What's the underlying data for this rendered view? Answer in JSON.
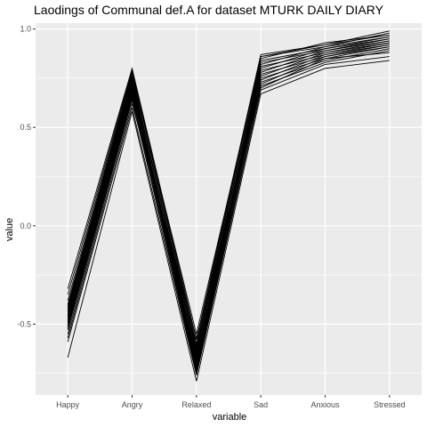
{
  "chart_data": {
    "type": "line",
    "title": "Laodings of Communal def.A for dataset MTURK DAILY DIARY",
    "xlabel": "variable",
    "ylabel": "value",
    "categories": [
      "Happy",
      "Angry",
      "Relaxed",
      "Sad",
      "Anxious",
      "Stressed"
    ],
    "ylim": [
      -0.86,
      1.03
    ],
    "yticks": [
      -0.5,
      0.0,
      0.5,
      1.0
    ],
    "ytick_labels": [
      "-0.5",
      "0.0",
      "0.5",
      "1.0"
    ],
    "grid": true,
    "legend": "none",
    "line_color": "#000000",
    "panel_background": "#ebebeb",
    "series": [
      {
        "values": [
          -0.32,
          0.8,
          -0.58,
          0.87,
          0.92,
          0.99
        ]
      },
      {
        "values": [
          -0.35,
          0.79,
          -0.6,
          0.86,
          0.91,
          0.98
        ]
      },
      {
        "values": [
          -0.38,
          0.78,
          -0.62,
          0.86,
          0.92,
          0.97
        ]
      },
      {
        "values": [
          -0.4,
          0.77,
          -0.55,
          0.85,
          0.93,
          0.97
        ]
      },
      {
        "values": [
          -0.41,
          0.76,
          -0.64,
          0.84,
          0.9,
          0.96
        ]
      },
      {
        "values": [
          -0.42,
          0.75,
          -0.66,
          0.83,
          0.89,
          0.95
        ]
      },
      {
        "values": [
          -0.43,
          0.74,
          -0.63,
          0.82,
          0.91,
          0.96
        ]
      },
      {
        "values": [
          -0.44,
          0.73,
          -0.68,
          0.81,
          0.88,
          0.94
        ]
      },
      {
        "values": [
          -0.45,
          0.73,
          -0.7,
          0.8,
          0.9,
          0.95
        ]
      },
      {
        "values": [
          -0.46,
          0.72,
          -0.69,
          0.79,
          0.87,
          0.93
        ]
      },
      {
        "values": [
          -0.47,
          0.71,
          -0.71,
          0.78,
          0.89,
          0.94
        ]
      },
      {
        "values": [
          -0.48,
          0.7,
          -0.72,
          0.77,
          0.86,
          0.92
        ]
      },
      {
        "values": [
          -0.49,
          0.69,
          -0.65,
          0.76,
          0.88,
          0.93
        ]
      },
      {
        "values": [
          -0.5,
          0.68,
          -0.73,
          0.75,
          0.85,
          0.91
        ]
      },
      {
        "values": [
          -0.51,
          0.67,
          -0.67,
          0.74,
          0.87,
          0.92
        ]
      },
      {
        "values": [
          -0.52,
          0.66,
          -0.74,
          0.73,
          0.84,
          0.9
        ]
      },
      {
        "values": [
          -0.53,
          0.65,
          -0.61,
          0.72,
          0.86,
          0.91
        ]
      },
      {
        "values": [
          -0.55,
          0.64,
          -0.75,
          0.71,
          0.83,
          0.89
        ]
      },
      {
        "values": [
          -0.57,
          0.62,
          -0.57,
          0.7,
          0.85,
          0.88
        ]
      },
      {
        "values": [
          -0.59,
          0.6,
          -0.76,
          0.69,
          0.82,
          0.86
        ]
      },
      {
        "values": [
          -0.67,
          0.58,
          -0.79,
          0.67,
          0.8,
          0.84
        ]
      }
    ]
  }
}
